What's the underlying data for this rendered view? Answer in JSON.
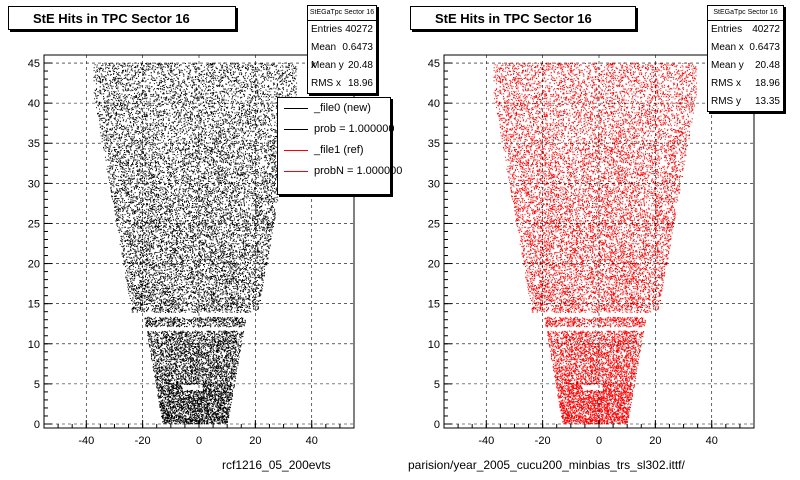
{
  "chart_data": [
    {
      "type": "scatter",
      "title": "StE Hits in TPC Sector 16",
      "color": "#000000",
      "xlim": [
        -55,
        55
      ],
      "ylim": [
        -0.5,
        46
      ],
      "xticks": [
        -40,
        -20,
        0,
        20,
        40
      ],
      "yticks": [
        0,
        5,
        10,
        15,
        20,
        25,
        30,
        35,
        40,
        45
      ],
      "grid": true,
      "stats": {
        "name": "StEGaTpc Sector 16",
        "rows": [
          {
            "label": "Entries",
            "value": "40272"
          },
          {
            "label": "Mean x",
            "value": "0.6473"
          },
          {
            "label": "Mean y",
            "value": "20.48"
          },
          {
            "label": "RMS x",
            "value": "18.96"
          }
        ]
      },
      "legend": {
        "placement": "top-right",
        "entries": [
          {
            "label": "_file0 (new)",
            "color": "#000000"
          },
          {
            "label": "prob = 1.000000",
            "color": "#000000"
          },
          {
            "label": "_file1 (ref)",
            "color": "#ff0000"
          },
          {
            "label": "probN = 1.000000",
            "color": "#ff0000"
          }
        ]
      },
      "footer": "rcf1216_05_200evts"
    },
    {
      "type": "scatter",
      "title": "StE Hits in TPC Sector 16",
      "color": "#ff0000",
      "xlim": [
        -55,
        55
      ],
      "ylim": [
        -0.5,
        46
      ],
      "xticks": [
        -40,
        -20,
        0,
        20,
        40
      ],
      "yticks": [
        0,
        5,
        10,
        15,
        20,
        25,
        30,
        35,
        40,
        45
      ],
      "grid": true,
      "stats": {
        "name": "StEGaTpc Sector 16",
        "rows": [
          {
            "label": "Entries",
            "value": "40272"
          },
          {
            "label": "Mean x",
            "value": "0.6473"
          },
          {
            "label": "Mean y",
            "value": "20.48"
          },
          {
            "label": "RMS x",
            "value": "18.96"
          },
          {
            "label": "RMS y",
            "value": "13.35"
          }
        ]
      },
      "footer": "parision/year_2005_cucu200_minbias_trs_sl302.ittf/"
    }
  ]
}
